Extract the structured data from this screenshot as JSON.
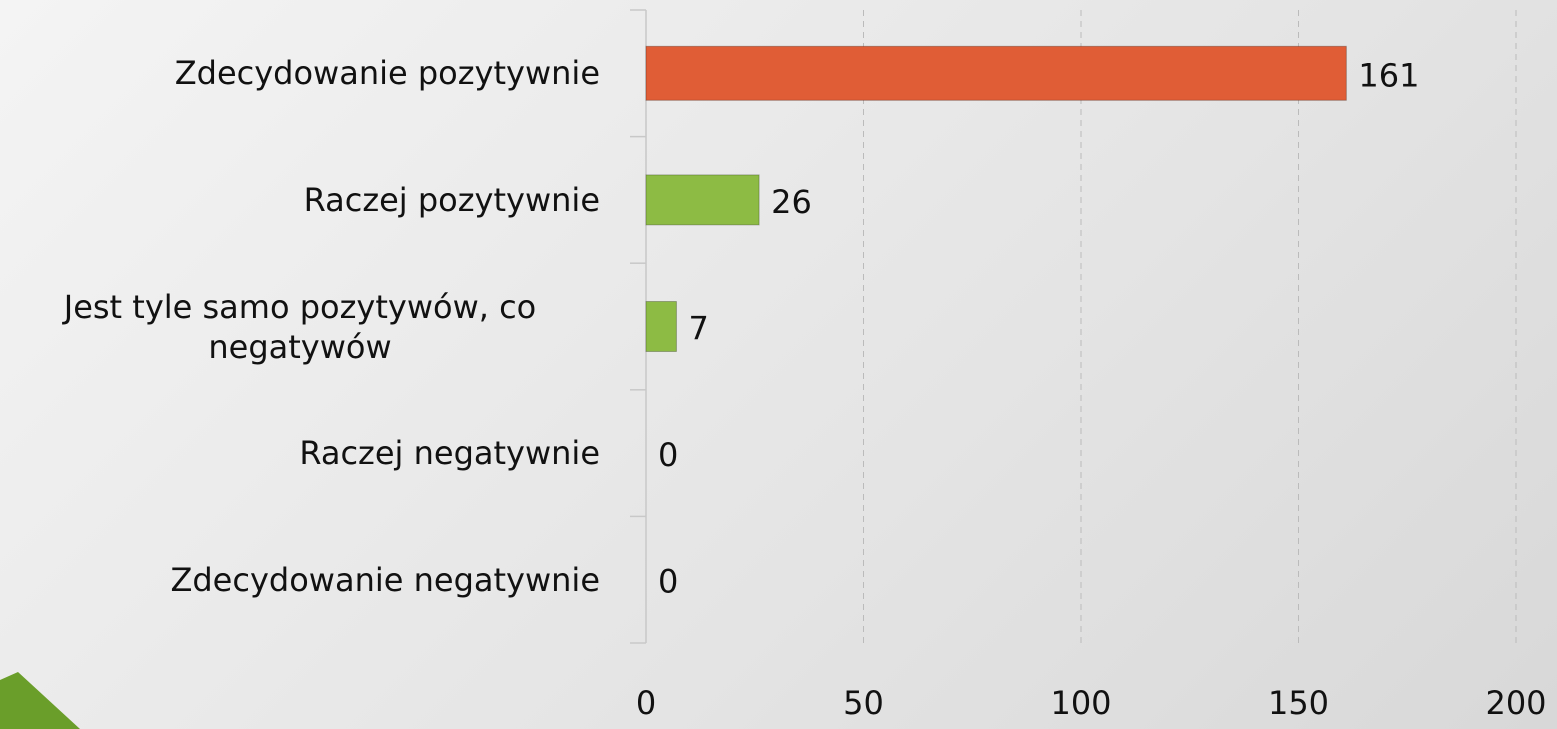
{
  "chart_data": {
    "type": "bar",
    "orientation": "horizontal",
    "categories": [
      "Zdecydowanie pozytywnie",
      "Raczej pozytywnie",
      "Jest tyle samo pozytywów, co negatywów",
      "Raczej negatywnie",
      "Zdecydowanie negatywnie"
    ],
    "values": [
      161,
      26,
      7,
      0,
      0
    ],
    "colors": [
      "#e05d36",
      "#8dbb44",
      "#8dbb44",
      "#8dbb44",
      "#8dbb44"
    ],
    "xlim": [
      0,
      200
    ],
    "xticks": [
      0,
      50,
      100,
      150,
      200
    ],
    "grid": true
  }
}
